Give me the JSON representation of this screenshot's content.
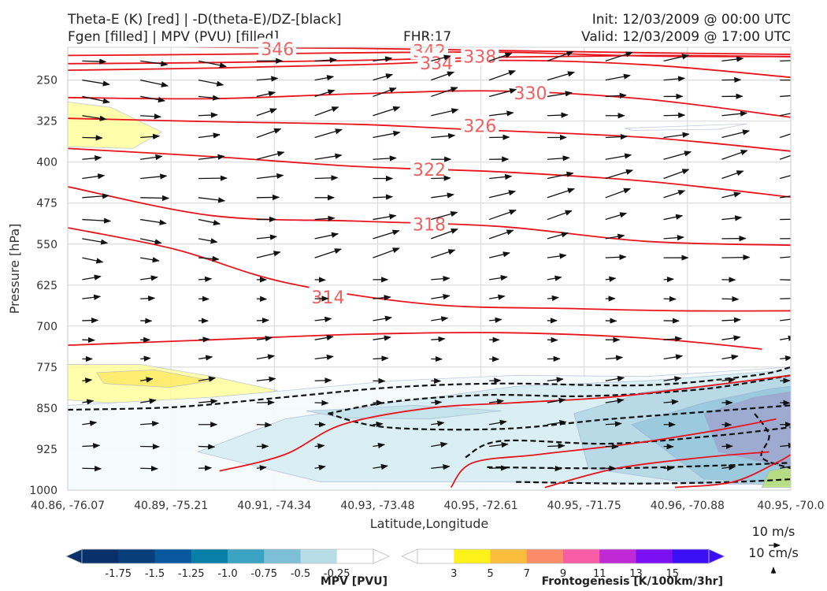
{
  "header": {
    "line1_left": "Theta-E (K) [red] | -D(theta-E)/DZ-[black]",
    "line2_left": "Fgen [filled] | MPV (PVU) [filled]",
    "line2_center": "FHR:17",
    "line1_right": "Init: 12/03/2009 @ 00:00 UTC",
    "line2_right": "Valid: 12/03/2009 @ 17:00 UTC"
  },
  "chart_data": {
    "type": "cross-section",
    "xlabel": "Latitude,Longitude",
    "ylabel": "Pressure [hPa]",
    "x_ticks": [
      "40.86, -76.07",
      "40.89, -75.21",
      "40.91, -74.34",
      "40.93, -73.48",
      "40.95, -72.61",
      "40.95, -71.75",
      "40.96, -70.88",
      "40.95, -70.0"
    ],
    "y_ticks": [
      250,
      325,
      400,
      475,
      550,
      625,
      700,
      775,
      850,
      925,
      1000
    ],
    "ylim": [
      1000,
      190
    ],
    "y_inverted": true,
    "grid": true,
    "theta_e": {
      "color": "#e8141c",
      "label_color": "#ee6060",
      "contours": [
        {
          "value": 346,
          "label": "346",
          "label_pos": [
            0.29,
            194
          ],
          "points": [
            [
              0,
              187
            ],
            [
              0.2,
              190
            ],
            [
              0.4,
              192
            ],
            [
              0.6,
              196
            ],
            [
              0.8,
              200
            ],
            [
              1,
              203
            ]
          ]
        },
        {
          "value": 342,
          "label": "342",
          "label_pos": [
            0.5,
            198
          ],
          "points": [
            [
              0,
              205
            ],
            [
              0.2,
              203
            ],
            [
              0.4,
              200
            ],
            [
              0.6,
              199
            ],
            [
              0.8,
              206
            ],
            [
              1,
              207
            ]
          ]
        },
        {
          "value": 338,
          "label": "338",
          "label_pos": [
            0.57,
            208
          ],
          "points": [
            [
              0,
              220
            ],
            [
              0.2,
              218
            ],
            [
              0.4,
              214
            ],
            [
              0.6,
              208
            ],
            [
              0.8,
              205
            ],
            [
              1,
              207
            ]
          ]
        },
        {
          "value": 334,
          "label": "334",
          "label_pos": [
            0.51,
            220
          ],
          "points": [
            [
              0,
              232
            ],
            [
              0.2,
              228
            ],
            [
              0.4,
              222
            ],
            [
              0.6,
              214
            ],
            [
              0.8,
              222
            ],
            [
              1,
              245
            ]
          ]
        },
        {
          "value": 330,
          "label": "330",
          "label_pos": [
            0.64,
            275
          ],
          "points": [
            [
              0,
              282
            ],
            [
              0.2,
              284
            ],
            [
              0.4,
              275
            ],
            [
              0.6,
              270
            ],
            [
              0.8,
              285
            ],
            [
              1,
              318
            ]
          ]
        },
        {
          "value": 326,
          "label": "326",
          "label_pos": [
            0.57,
            335
          ],
          "points": [
            [
              0,
              320
            ],
            [
              0.2,
              326
            ],
            [
              0.4,
              331
            ],
            [
              0.55,
              340
            ],
            [
              0.8,
              355
            ],
            [
              1,
              380
            ]
          ]
        },
        {
          "value": 322,
          "label": "322",
          "label_pos": [
            0.5,
            415
          ],
          "points": [
            [
              0,
              375
            ],
            [
              0.2,
              390
            ],
            [
              0.4,
              408
            ],
            [
              0.6,
              418
            ],
            [
              0.8,
              435
            ],
            [
              1,
              464
            ]
          ]
        },
        {
          "value": 318,
          "label": "318",
          "label_pos": [
            0.5,
            515
          ],
          "points": [
            [
              0,
              445
            ],
            [
              0.2,
              498
            ],
            [
              0.4,
              508
            ],
            [
              0.6,
              518
            ],
            [
              0.8,
              545
            ],
            [
              1,
              552
            ]
          ]
        },
        {
          "value": 314,
          "label": "314",
          "label_pos": [
            0.36,
            648
          ],
          "points": [
            [
              0,
              520
            ],
            [
              0.15,
              560
            ],
            [
              0.3,
              620
            ],
            [
              0.5,
              660
            ],
            [
              0.7,
              668
            ],
            [
              0.85,
              672
            ],
            [
              1,
              672
            ]
          ]
        },
        {
          "value": 310,
          "label": "",
          "label_pos": null,
          "points": [
            [
              0,
              735
            ],
            [
              0.2,
              725
            ],
            [
              0.4,
              715
            ],
            [
              0.6,
              712
            ],
            [
              0.8,
              722
            ],
            [
              0.96,
              742
            ]
          ]
        }
      ]
    },
    "neg_dthetae_dz": {
      "color": "#111111",
      "style": "dashed"
    },
    "mpv_filled": {
      "colors": [
        "#08306b",
        "#08458a",
        "#08589e",
        "#2b8cbe",
        "#4eb3d3",
        "#7bccc4",
        "#a8ddb5",
        "#ffffff"
      ]
    },
    "frontogenesis_filled": {
      "colors": [
        "#ffffff",
        "#fff200",
        "#fdbb3f",
        "#fb8c6a",
        "#f55aa7",
        "#c02ad4",
        "#7d0ff0",
        "#3b10f5"
      ]
    },
    "wind_barbs": {
      "quiver_key": "10 m/s",
      "quiver_key2": "10 cm/s"
    }
  },
  "colorbars": {
    "mpv": {
      "title": "MPV [PVU]",
      "ticks": [
        "-1.75",
        "-1.5",
        "-1.25",
        "-1.0",
        "-0.75",
        "-0.5",
        "-0.25"
      ],
      "colors": [
        "#08306b",
        "#083f7a",
        "#08589e",
        "#087fa6",
        "#3aa3c4",
        "#7dbfd6",
        "#b7dde6",
        "#ffffff"
      ]
    },
    "fgen": {
      "title": "Frontogenesis [K/100km/3hr]",
      "ticks": [
        "3",
        "5",
        "7",
        "9",
        "11",
        "13",
        "15"
      ],
      "colors": [
        "#ffffff",
        "#fff21a",
        "#fdbd3c",
        "#fb8c6a",
        "#f75ca4",
        "#bf2ad6",
        "#7b10f2",
        "#3a0ff5"
      ]
    }
  }
}
